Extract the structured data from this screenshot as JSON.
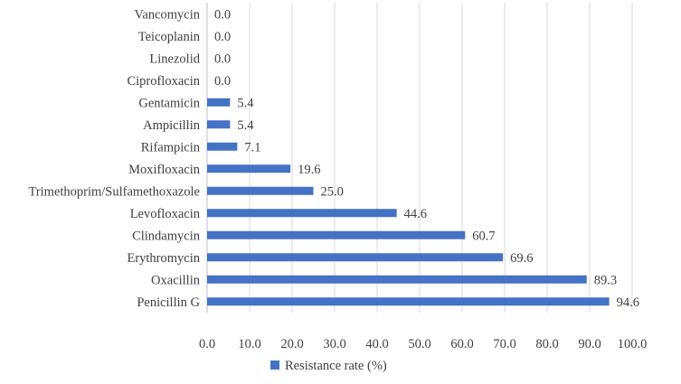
{
  "chart_data": {
    "type": "bar",
    "orientation": "horizontal",
    "title": "",
    "xlabel": "",
    "ylabel": "",
    "categories": [
      "Vancomycin",
      "Teicoplanin",
      "Linezolid",
      "Ciprofloxacin",
      "Gentamicin",
      "Ampicillin",
      "Rifampicin",
      "Moxifloxacin",
      "Trimethoprim/Sulfamethoxazole",
      "Levofloxacin",
      "Clindamycin",
      "Erythromycin",
      "Oxacillin",
      "Penicillin G"
    ],
    "series": [
      {
        "name": "Resistance rate (%)",
        "color": "#4472C4",
        "values": [
          0.0,
          0.0,
          0.0,
          0.0,
          5.4,
          5.4,
          7.1,
          19.6,
          25.0,
          44.6,
          60.7,
          69.6,
          89.3,
          94.6
        ]
      }
    ],
    "xlim": [
      0,
      100
    ],
    "xticks": [
      "0.0",
      "10.0",
      "20.0",
      "30.0",
      "40.0",
      "50.0",
      "60.0",
      "70.0",
      "80.0",
      "90.0",
      "100.0"
    ],
    "grid": true,
    "legend": "bottom"
  }
}
